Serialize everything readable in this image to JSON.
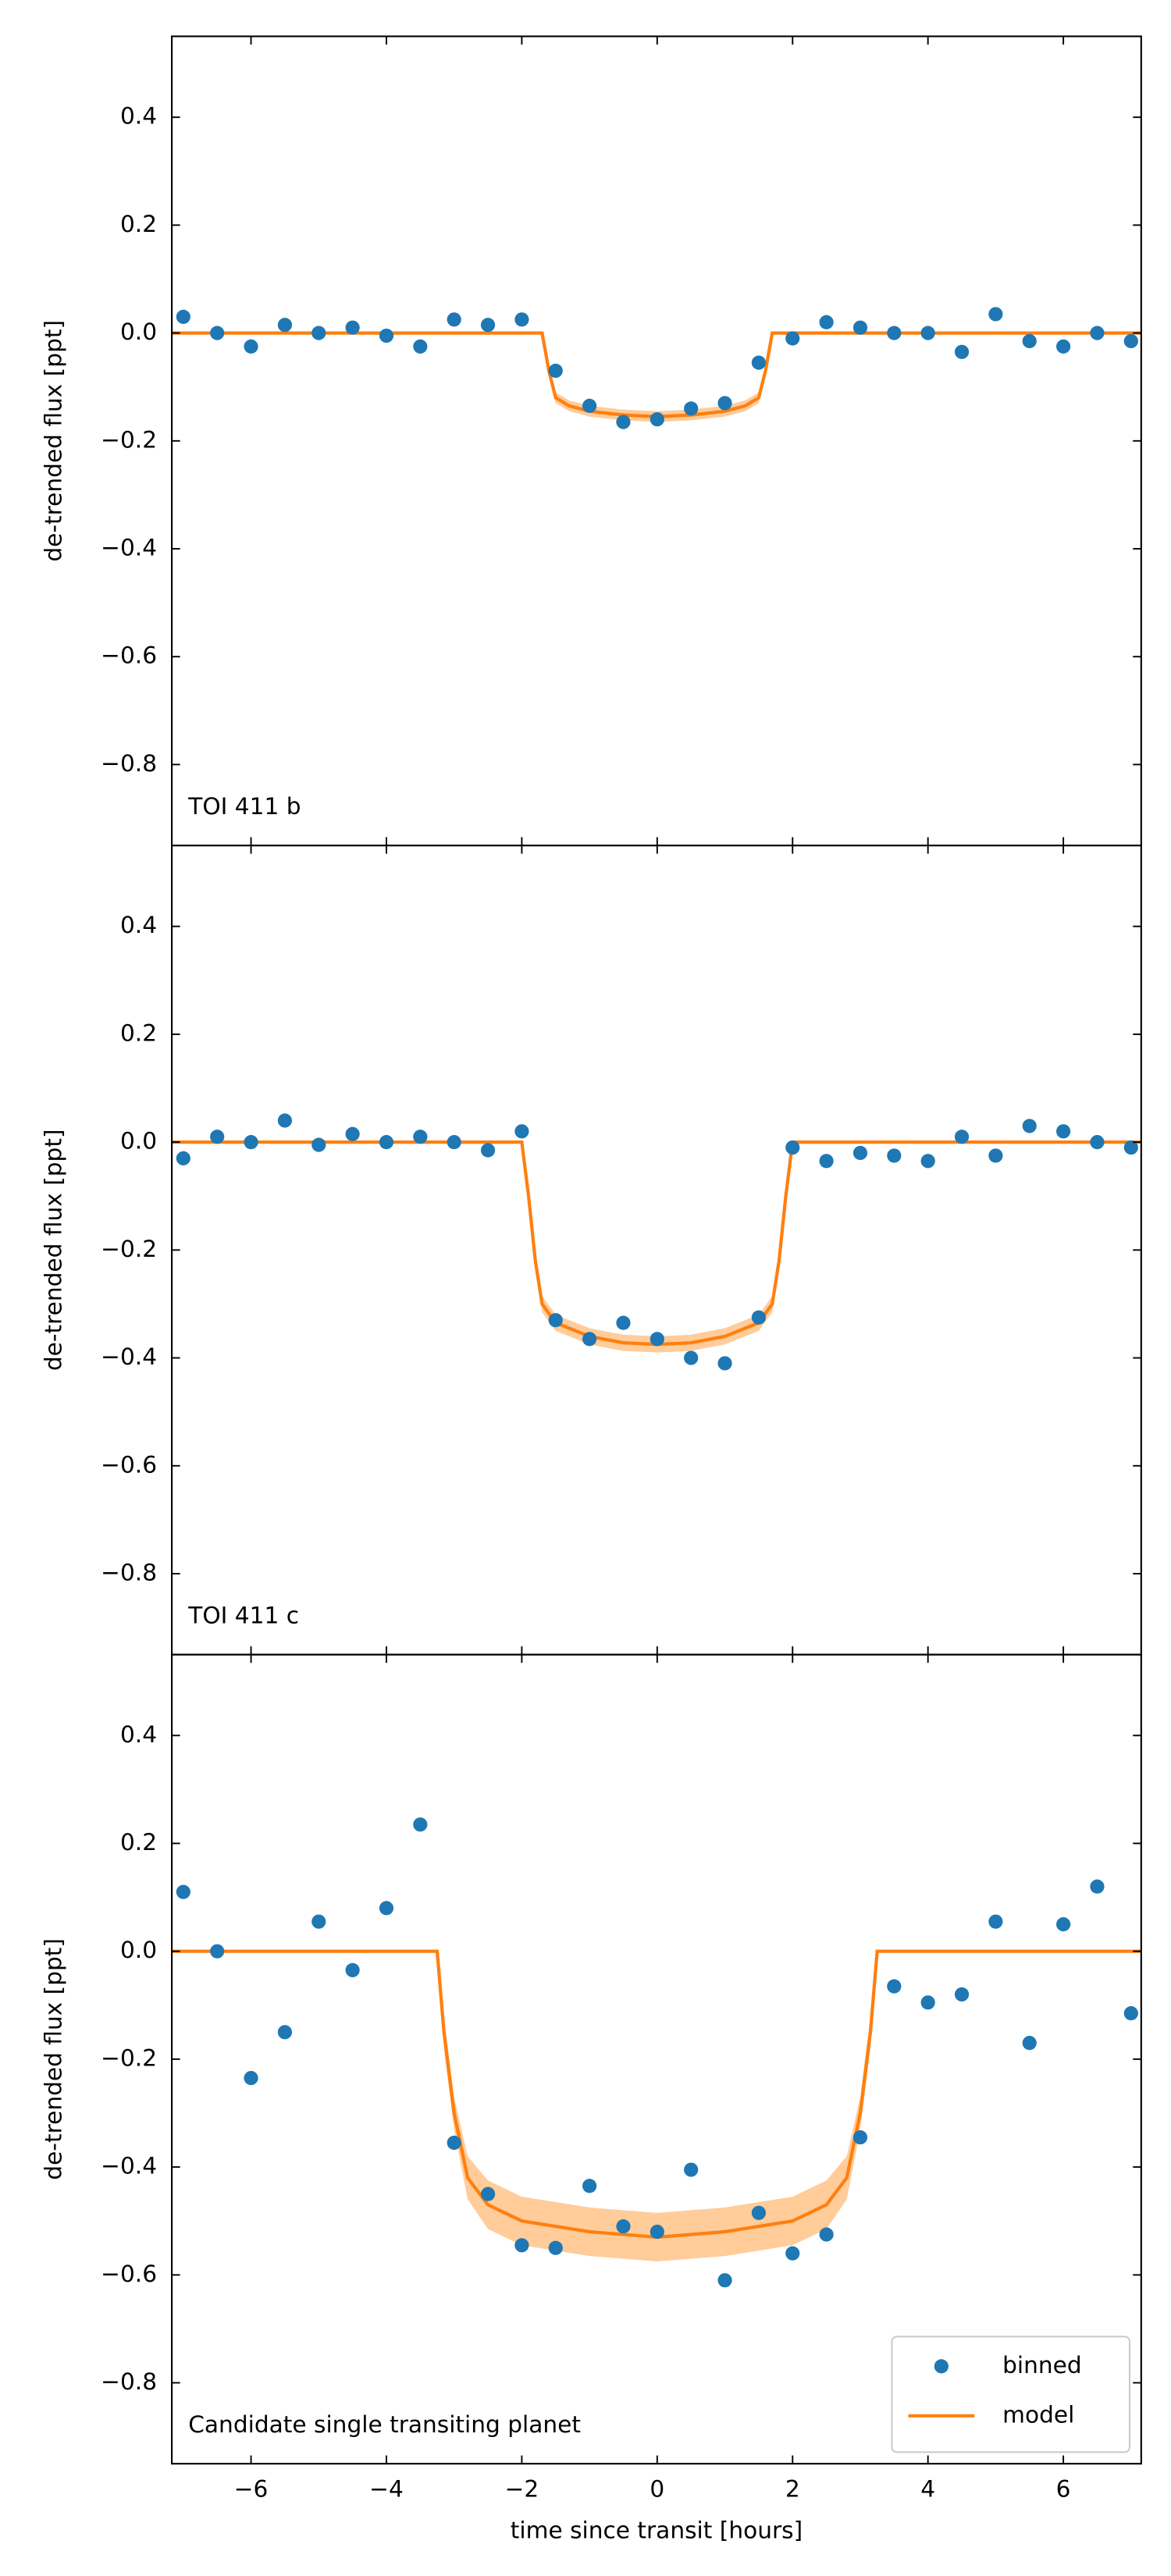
{
  "chart_data": [
    {
      "type": "lightcurve",
      "label": "TOI 411 b",
      "ylabel": "de-trended flux [ppt]",
      "xlim": [
        -7.17,
        7.15
      ],
      "ylim": [
        -0.95,
        0.55
      ],
      "xticks": [
        {
          "value": -6,
          "label": "−6"
        },
        {
          "value": -4,
          "label": "−4"
        },
        {
          "value": -2,
          "label": "−2"
        },
        0,
        2,
        4,
        6
      ],
      "yticks": [
        {
          "value": -0.8,
          "label": "−0.8"
        },
        {
          "value": -0.6,
          "label": "−0.6"
        },
        {
          "value": -0.4,
          "label": "−0.4"
        },
        {
          "value": -0.2,
          "label": "−0.2"
        },
        {
          "value": 0,
          "label": "0.0"
        },
        0.2,
        0.4
      ],
      "series": [
        {
          "kind": "markers",
          "color": "#1f77b4",
          "x": [
            -7,
            -6.5,
            -6,
            -5.5,
            -5,
            -4.5,
            -4,
            -3.5,
            -3,
            -2.5,
            -2,
            -1.5,
            -1,
            -0.5,
            0,
            0.5,
            1,
            1.5,
            2,
            2.5,
            3,
            3.5,
            4,
            4.5,
            5,
            5.5,
            6,
            6.5,
            7
          ],
          "values": [
            0.03,
            0.0,
            -0.025,
            0.015,
            0.0,
            0.01,
            -0.005,
            -0.025,
            0.025,
            0.015,
            0.025,
            -0.07,
            -0.135,
            -0.165,
            -0.16,
            -0.14,
            -0.13,
            -0.055,
            -0.01,
            0.02,
            0.01,
            0.0,
            0.0,
            -0.035,
            0.035,
            -0.015,
            -0.025,
            0.0,
            -0.015
          ]
        },
        {
          "kind": "line",
          "color": "#ff7f0e",
          "x": [
            -7.17,
            -1.7,
            -1.6,
            -1.5,
            -1.3,
            -1.0,
            -0.5,
            0,
            0.5,
            1.0,
            1.3,
            1.5,
            1.6,
            1.7,
            7.15
          ],
          "values": [
            0,
            0,
            -0.07,
            -0.12,
            -0.135,
            -0.145,
            -0.152,
            -0.155,
            -0.152,
            -0.145,
            -0.135,
            -0.12,
            -0.07,
            0,
            0
          ],
          "lower": [
            0,
            0,
            -0.08,
            -0.13,
            -0.145,
            -0.155,
            -0.162,
            -0.165,
            -0.162,
            -0.155,
            -0.145,
            -0.13,
            -0.08,
            0,
            0
          ],
          "upper": [
            0,
            0,
            -0.06,
            -0.11,
            -0.125,
            -0.135,
            -0.142,
            -0.145,
            -0.142,
            -0.135,
            -0.125,
            -0.11,
            -0.06,
            0,
            0
          ],
          "band_color": "#ffbb78"
        }
      ]
    },
    {
      "type": "lightcurve",
      "label": "TOI 411 c",
      "ylabel": "de-trended flux [ppt]",
      "xlim": [
        -7.17,
        7.15
      ],
      "ylim": [
        -0.95,
        0.55
      ],
      "xticks": [
        {
          "value": -6,
          "label": "−6"
        },
        {
          "value": -4,
          "label": "−4"
        },
        {
          "value": -2,
          "label": "−2"
        },
        0,
        2,
        4,
        6
      ],
      "yticks": [
        {
          "value": -0.8,
          "label": "−0.8"
        },
        {
          "value": -0.6,
          "label": "−0.6"
        },
        {
          "value": -0.4,
          "label": "−0.4"
        },
        {
          "value": -0.2,
          "label": "−0.2"
        },
        {
          "value": 0,
          "label": "0.0"
        },
        0.2,
        0.4
      ],
      "series": [
        {
          "kind": "markers",
          "color": "#1f77b4",
          "x": [
            -7,
            -6.5,
            -6,
            -5.5,
            -5,
            -4.5,
            -4,
            -3.5,
            -3,
            -2.5,
            -2,
            -1.5,
            -1,
            -0.5,
            0,
            0.5,
            1,
            1.5,
            2,
            2.5,
            3,
            3.5,
            4,
            4.5,
            5,
            5.5,
            6,
            6.5,
            7
          ],
          "values": [
            -0.03,
            0.01,
            0.0,
            0.04,
            -0.005,
            0.015,
            0.0,
            0.01,
            0.0,
            -0.015,
            0.02,
            -0.33,
            -0.365,
            -0.335,
            -0.365,
            -0.4,
            -0.41,
            -0.325,
            -0.01,
            -0.035,
            -0.02,
            -0.025,
            -0.035,
            0.01,
            -0.025,
            0.03,
            0.02,
            0.0,
            -0.01
          ]
        },
        {
          "kind": "line",
          "color": "#ff7f0e",
          "x": [
            -7.17,
            -2.0,
            -1.9,
            -1.8,
            -1.7,
            -1.5,
            -1.0,
            -0.5,
            0,
            0.5,
            1.0,
            1.5,
            1.7,
            1.8,
            1.9,
            2.0,
            7.15
          ],
          "values": [
            0,
            0,
            -0.1,
            -0.22,
            -0.3,
            -0.335,
            -0.36,
            -0.372,
            -0.375,
            -0.372,
            -0.36,
            -0.335,
            -0.3,
            -0.22,
            -0.1,
            0,
            0
          ],
          "lower": [
            0,
            0,
            -0.11,
            -0.235,
            -0.315,
            -0.35,
            -0.375,
            -0.387,
            -0.39,
            -0.387,
            -0.375,
            -0.35,
            -0.315,
            -0.235,
            -0.11,
            0,
            0
          ],
          "upper": [
            0,
            0,
            -0.09,
            -0.205,
            -0.285,
            -0.32,
            -0.345,
            -0.357,
            -0.36,
            -0.357,
            -0.345,
            -0.32,
            -0.285,
            -0.205,
            -0.09,
            0,
            0
          ],
          "band_color": "#ffbb78"
        }
      ]
    },
    {
      "type": "lightcurve",
      "label": "Candidate single transiting planet",
      "ylabel": "de-trended flux [ppt]",
      "xlabel": "time since transit [hours]",
      "legend": "lower right",
      "xlim": [
        -7.17,
        7.15
      ],
      "ylim": [
        -0.95,
        0.55
      ],
      "xticks": [
        {
          "value": -6,
          "label": "−6"
        },
        {
          "value": -4,
          "label": "−4"
        },
        {
          "value": -2,
          "label": "−2"
        },
        0,
        2,
        4,
        6
      ],
      "yticks": [
        {
          "value": -0.8,
          "label": "−0.8"
        },
        {
          "value": -0.6,
          "label": "−0.6"
        },
        {
          "value": -0.4,
          "label": "−0.4"
        },
        {
          "value": -0.2,
          "label": "−0.2"
        },
        {
          "value": 0,
          "label": "0.0"
        },
        0.2,
        0.4
      ],
      "series": [
        {
          "name": "binned",
          "kind": "markers",
          "color": "#1f77b4",
          "x": [
            -7,
            -6.5,
            -6,
            -5.5,
            -5,
            -4.5,
            -4,
            -3.5,
            -3,
            -2.5,
            -2,
            -1.5,
            -1,
            -0.5,
            0,
            0.5,
            1,
            1.5,
            2,
            2.5,
            3,
            3.5,
            4,
            4.5,
            5,
            5.5,
            6,
            6.5,
            7
          ],
          "values": [
            0.11,
            0.0,
            -0.235,
            -0.15,
            0.055,
            -0.035,
            0.08,
            0.235,
            -0.355,
            -0.45,
            -0.545,
            -0.55,
            -0.435,
            -0.51,
            -0.52,
            -0.405,
            -0.61,
            -0.485,
            -0.56,
            -0.525,
            -0.345,
            -0.065,
            -0.095,
            -0.08,
            0.055,
            -0.17,
            0.05,
            0.12,
            -0.115
          ]
        },
        {
          "name": "model",
          "kind": "line",
          "color": "#ff7f0e",
          "x": [
            -7.17,
            -3.25,
            -3.15,
            -3.0,
            -2.8,
            -2.5,
            -2.0,
            -1.0,
            0,
            1.0,
            2.0,
            2.5,
            2.8,
            3.0,
            3.15,
            3.25,
            7.15
          ],
          "values": [
            0,
            0,
            -0.15,
            -0.3,
            -0.42,
            -0.47,
            -0.5,
            -0.52,
            -0.53,
            -0.52,
            -0.5,
            -0.47,
            -0.42,
            -0.3,
            -0.15,
            0,
            0
          ],
          "lower": [
            0,
            0,
            -0.18,
            -0.33,
            -0.46,
            -0.515,
            -0.545,
            -0.565,
            -0.575,
            -0.565,
            -0.545,
            -0.515,
            -0.46,
            -0.33,
            -0.18,
            0,
            0
          ],
          "upper": [
            0,
            0,
            -0.12,
            -0.27,
            -0.38,
            -0.425,
            -0.455,
            -0.475,
            -0.485,
            -0.475,
            -0.455,
            -0.425,
            -0.38,
            -0.27,
            -0.12,
            0,
            0
          ],
          "band_color": "#ffbb78"
        }
      ]
    }
  ]
}
